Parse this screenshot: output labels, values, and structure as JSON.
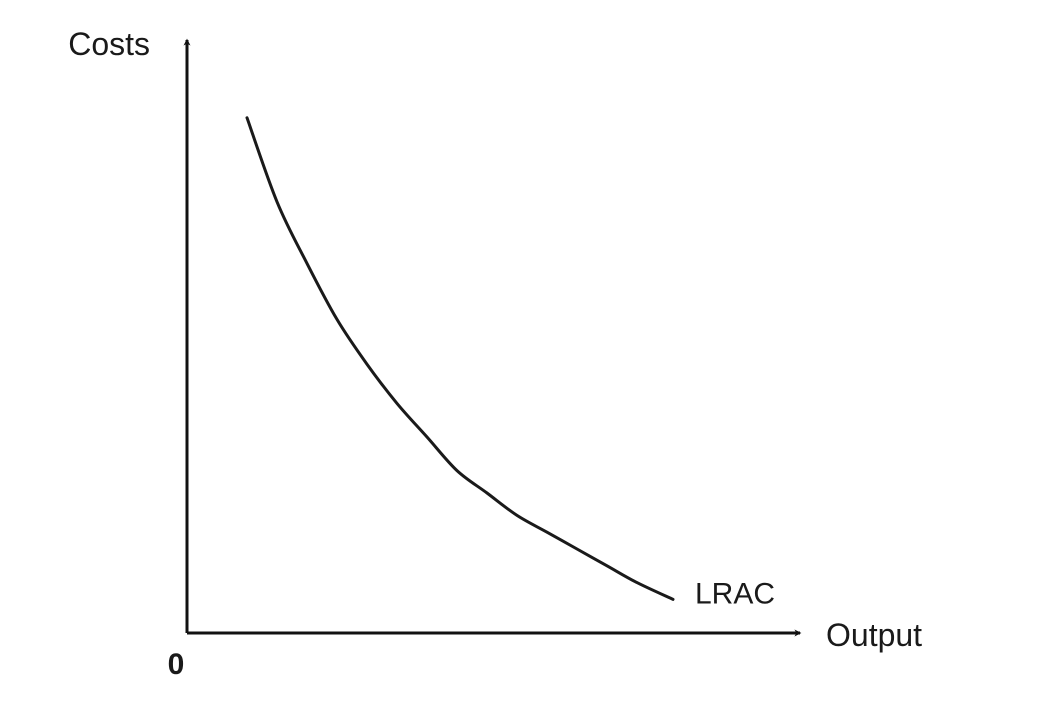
{
  "chart_data": {
    "type": "line",
    "title": "",
    "xlabel": "Output",
    "ylabel": "Costs",
    "origin_label": "0",
    "xlim": [
      0,
      10
    ],
    "ylim": [
      0,
      10
    ],
    "grid": false,
    "legend": "none",
    "series": [
      {
        "name": "LRAC",
        "x": [
          1.0,
          1.5,
          2.0,
          2.5,
          3.0,
          3.5,
          4.0,
          4.5,
          5.0,
          5.5,
          6.0,
          6.5,
          7.0,
          7.5,
          8.1
        ],
        "y": [
          9.2,
          7.7,
          6.6,
          5.6,
          4.8,
          4.1,
          3.5,
          2.9,
          2.5,
          2.1,
          1.8,
          1.5,
          1.2,
          0.9,
          0.6
        ]
      }
    ]
  }
}
